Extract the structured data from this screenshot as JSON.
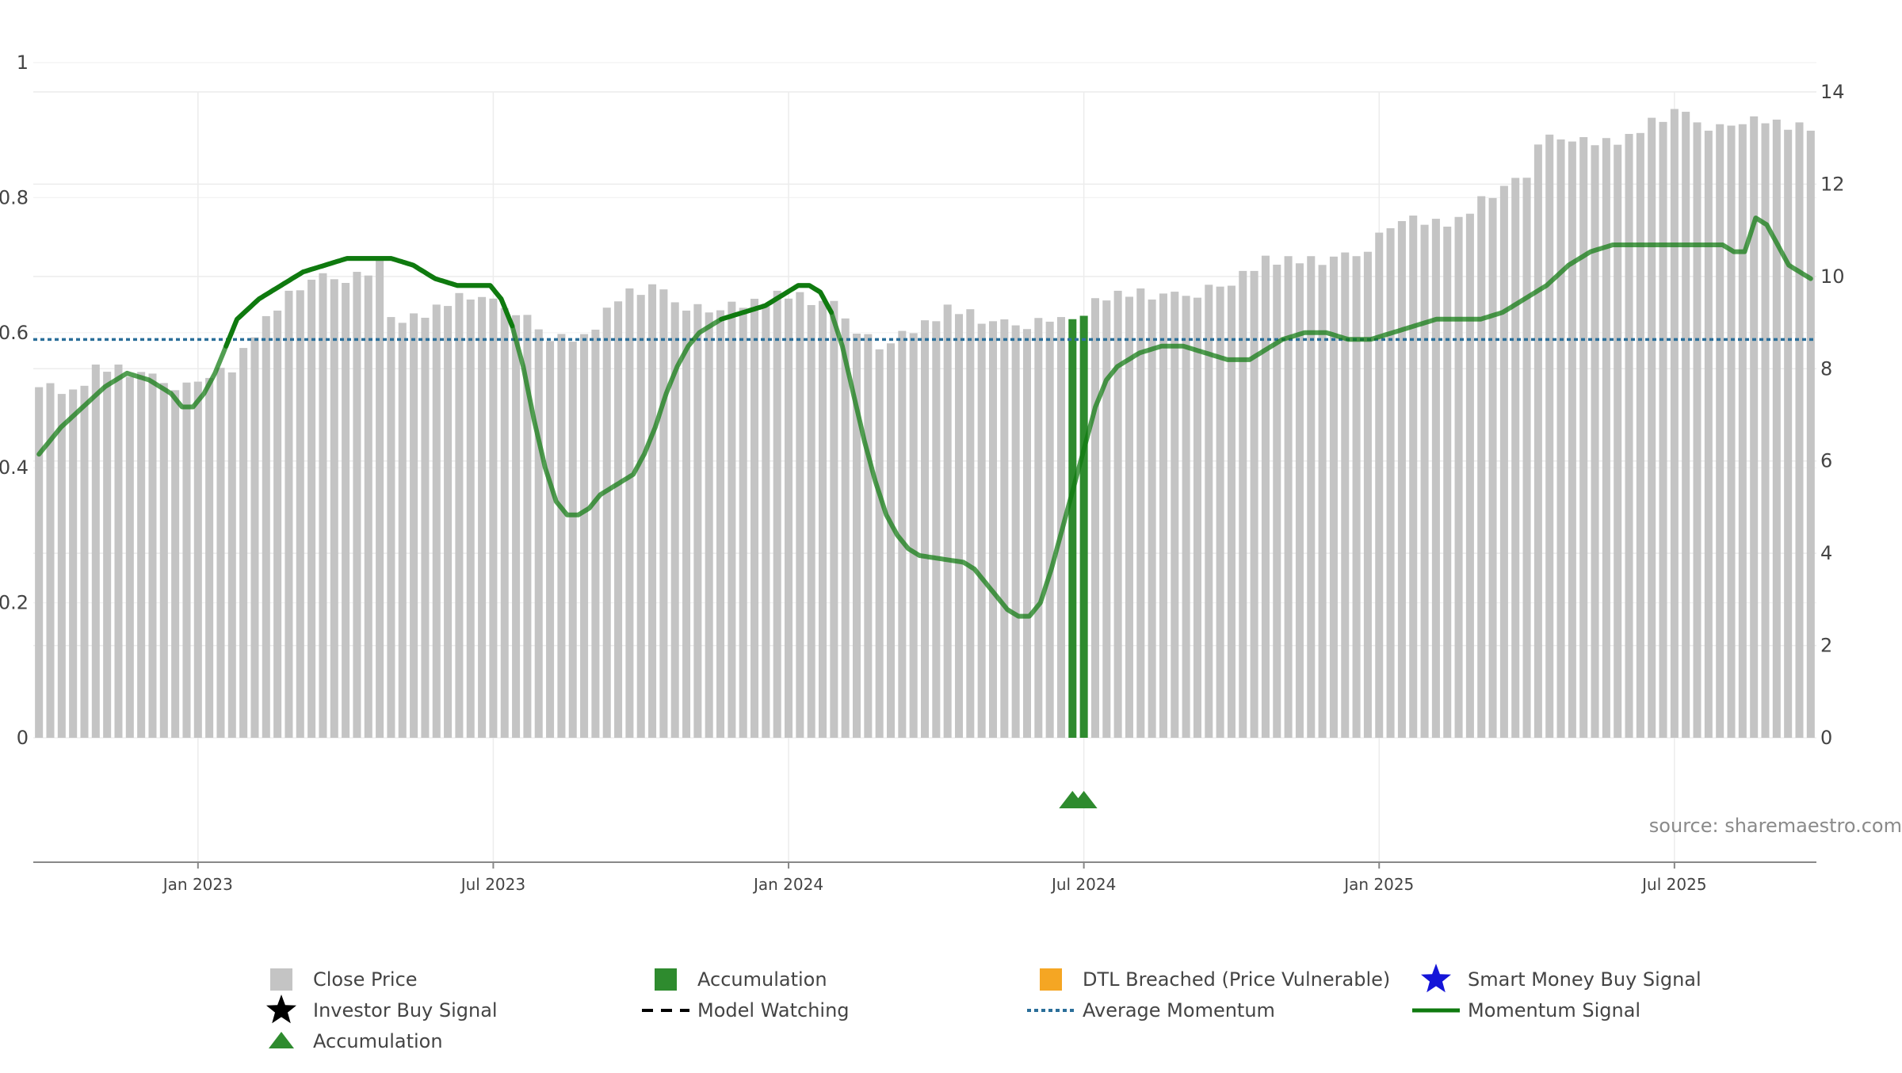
{
  "chart_data": {
    "type": "bar",
    "source": "source: sharemaestro.com",
    "left_axis": {
      "ylim": [
        0,
        1
      ],
      "ticks": [
        "0",
        "0.2",
        "0.4",
        "0.6",
        "0.8",
        "1"
      ]
    },
    "right_axis": {
      "ylim": [
        0,
        14
      ],
      "ticks": [
        "0",
        "2",
        "4",
        "6",
        "8",
        "10",
        "12",
        "14"
      ]
    },
    "x_axis": {
      "tick_labels": [
        "Jan 2023",
        "Jul 2023",
        "Jan 2024",
        "Jul 2024",
        "Jan 2025",
        "Jul 2025"
      ],
      "tick_positions_week_index": [
        14,
        40,
        66,
        92,
        118,
        144
      ],
      "n_weeks": 157
    },
    "close_price_anchors": [
      [
        0,
        7.6
      ],
      [
        3,
        7.5
      ],
      [
        5,
        8.0
      ],
      [
        9,
        7.9
      ],
      [
        13,
        7.6
      ],
      [
        17,
        8.0
      ],
      [
        19,
        8.8
      ],
      [
        23,
        9.8
      ],
      [
        25,
        10.0
      ],
      [
        29,
        10.0
      ],
      [
        30,
        10.4
      ],
      [
        31,
        9.0
      ],
      [
        35,
        9.3
      ],
      [
        38,
        9.6
      ],
      [
        42,
        9.3
      ],
      [
        45,
        8.6
      ],
      [
        48,
        8.7
      ],
      [
        51,
        9.5
      ],
      [
        54,
        9.8
      ],
      [
        56,
        9.5
      ],
      [
        59,
        9.2
      ],
      [
        65,
        9.6
      ],
      [
        70,
        9.4
      ],
      [
        74,
        8.4
      ],
      [
        78,
        9.0
      ],
      [
        80,
        9.3
      ],
      [
        84,
        9.0
      ],
      [
        89,
        9.0
      ],
      [
        94,
        9.6
      ],
      [
        100,
        9.6
      ],
      [
        105,
        9.8
      ],
      [
        108,
        10.4
      ],
      [
        112,
        10.3
      ],
      [
        116,
        10.5
      ],
      [
        120,
        11.2
      ],
      [
        125,
        11.2
      ],
      [
        128,
        11.8
      ],
      [
        131,
        12.2
      ],
      [
        132,
        13.0
      ],
      [
        136,
        12.9
      ],
      [
        140,
        13.0
      ],
      [
        144,
        13.6
      ],
      [
        148,
        13.2
      ],
      [
        152,
        13.4
      ],
      [
        156,
        13.2
      ]
    ],
    "momentum_signal_anchors": [
      [
        0,
        0.42
      ],
      [
        2,
        0.46
      ],
      [
        4,
        0.49
      ],
      [
        6,
        0.52
      ],
      [
        8,
        0.54
      ],
      [
        10,
        0.53
      ],
      [
        12,
        0.51
      ],
      [
        13,
        0.49
      ],
      [
        14,
        0.49
      ],
      [
        15,
        0.51
      ],
      [
        16,
        0.54
      ],
      [
        17,
        0.58
      ],
      [
        18,
        0.62
      ],
      [
        20,
        0.65
      ],
      [
        22,
        0.67
      ],
      [
        24,
        0.69
      ],
      [
        26,
        0.7
      ],
      [
        28,
        0.71
      ],
      [
        30,
        0.71
      ],
      [
        32,
        0.71
      ],
      [
        34,
        0.7
      ],
      [
        36,
        0.68
      ],
      [
        38,
        0.67
      ],
      [
        40,
        0.67
      ],
      [
        41,
        0.67
      ],
      [
        42,
        0.65
      ],
      [
        43,
        0.61
      ],
      [
        44,
        0.55
      ],
      [
        45,
        0.47
      ],
      [
        46,
        0.4
      ],
      [
        47,
        0.35
      ],
      [
        48,
        0.33
      ],
      [
        49,
        0.33
      ],
      [
        50,
        0.34
      ],
      [
        51,
        0.36
      ],
      [
        53,
        0.38
      ],
      [
        54,
        0.39
      ],
      [
        55,
        0.42
      ],
      [
        56,
        0.46
      ],
      [
        57,
        0.51
      ],
      [
        58,
        0.55
      ],
      [
        59,
        0.58
      ],
      [
        60,
        0.6
      ],
      [
        62,
        0.62
      ],
      [
        64,
        0.63
      ],
      [
        66,
        0.64
      ],
      [
        68,
        0.66
      ],
      [
        69,
        0.67
      ],
      [
        70,
        0.67
      ],
      [
        71,
        0.66
      ],
      [
        72,
        0.63
      ],
      [
        73,
        0.58
      ],
      [
        74,
        0.51
      ],
      [
        75,
        0.44
      ],
      [
        76,
        0.38
      ],
      [
        77,
        0.33
      ],
      [
        78,
        0.3
      ],
      [
        79,
        0.28
      ],
      [
        80,
        0.27
      ],
      [
        82,
        0.265
      ],
      [
        84,
        0.26
      ],
      [
        85,
        0.25
      ],
      [
        86,
        0.23
      ],
      [
        87,
        0.21
      ],
      [
        88,
        0.19
      ],
      [
        89,
        0.18
      ],
      [
        90,
        0.18
      ],
      [
        91,
        0.2
      ],
      [
        92,
        0.25
      ],
      [
        93,
        0.31
      ],
      [
        94,
        0.37
      ],
      [
        95,
        0.43
      ],
      [
        96,
        0.49
      ],
      [
        97,
        0.53
      ],
      [
        98,
        0.55
      ],
      [
        100,
        0.57
      ],
      [
        102,
        0.58
      ],
      [
        104,
        0.58
      ],
      [
        106,
        0.57
      ],
      [
        108,
        0.56
      ],
      [
        110,
        0.56
      ],
      [
        111,
        0.57
      ],
      [
        113,
        0.59
      ],
      [
        115,
        0.6
      ],
      [
        117,
        0.6
      ],
      [
        119,
        0.59
      ],
      [
        121,
        0.59
      ],
      [
        123,
        0.6
      ],
      [
        125,
        0.61
      ],
      [
        127,
        0.62
      ],
      [
        129,
        0.62
      ],
      [
        131,
        0.62
      ],
      [
        133,
        0.63
      ],
      [
        135,
        0.65
      ],
      [
        137,
        0.67
      ],
      [
        139,
        0.7
      ],
      [
        141,
        0.72
      ],
      [
        143,
        0.73
      ],
      [
        145,
        0.73
      ],
      [
        147,
        0.73
      ],
      [
        149,
        0.73
      ],
      [
        151,
        0.73
      ],
      [
        153,
        0.73
      ],
      [
        154,
        0.72
      ],
      [
        155,
        0.72
      ],
      [
        156,
        0.77
      ],
      [
        157,
        0.76
      ],
      [
        158,
        0.73
      ],
      [
        159,
        0.7
      ],
      [
        160,
        0.69
      ],
      [
        161,
        0.68
      ]
    ],
    "momentum_signal_opaque_segments": [
      [
        17,
        43
      ],
      [
        62,
        72
      ]
    ],
    "average_momentum": 0.59,
    "accumulation_bars": [
      {
        "week_index": 91,
        "value": 0.62
      },
      {
        "week_index": 92,
        "value": 0.625
      }
    ],
    "accumulation_markers_week_index": [
      91,
      92
    ],
    "series_colors": {
      "close_price": "#c4c4c4",
      "accumulation": "#2e8b2e",
      "momentum_signal": "#0f7a0f",
      "average_momentum": "#2b6f9a",
      "dtl_breached": "#f5a623",
      "smart_money": "#1515d8",
      "investor_buy": "#000000",
      "model_watching": "#000000"
    },
    "legend": [
      {
        "label": "Close Price",
        "symbol": "square-gray"
      },
      {
        "label": "Accumulation",
        "symbol": "square-green"
      },
      {
        "label": "DTL Breached (Price Vulnerable)",
        "symbol": "square-orange"
      },
      {
        "label": "Smart Money Buy Signal",
        "symbol": "star-blue"
      },
      {
        "label": "Investor Buy Signal",
        "symbol": "star-black"
      },
      {
        "label": "Model Watching",
        "symbol": "dash-black"
      },
      {
        "label": "Average Momentum",
        "symbol": "dot-blue"
      },
      {
        "label": "Momentum Signal",
        "symbol": "line-green"
      },
      {
        "label": "Accumulation",
        "symbol": "triangle-green"
      }
    ]
  }
}
